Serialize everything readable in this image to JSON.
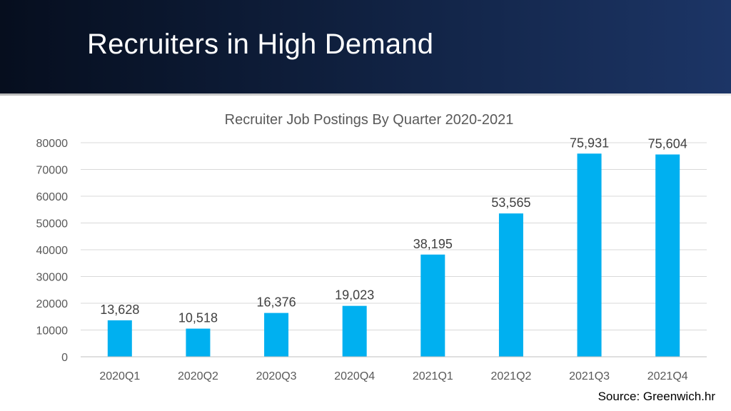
{
  "slide": {
    "title": "Recruiters in High Demand",
    "source": "Source: Greenwich.hr"
  },
  "colors": {
    "bar": "#00b0f0",
    "header_gradient": [
      "#060e1e",
      "#1c3566"
    ],
    "gridline": "#d9d9d9",
    "text": "#595959"
  },
  "chart_data": {
    "type": "bar",
    "title": "Recruiter Job Postings By Quarter 2020-2021",
    "xlabel": "",
    "ylabel": "",
    "categories": [
      "2020Q1",
      "2020Q2",
      "2020Q3",
      "2020Q4",
      "2021Q1",
      "2021Q2",
      "2021Q3",
      "2021Q4"
    ],
    "values": [
      13628,
      10518,
      16376,
      19023,
      38195,
      53565,
      75931,
      75604
    ],
    "data_labels": [
      "13,628",
      "10,518",
      "16,376",
      "19,023",
      "38,195",
      "53,565",
      "75,931",
      "75,604"
    ],
    "ylim": [
      0,
      80000
    ],
    "yticks": [
      "0",
      "10000",
      "20000",
      "30000",
      "40000",
      "50000",
      "60000",
      "70000",
      "80000"
    ],
    "grid": true,
    "legend": "none"
  }
}
